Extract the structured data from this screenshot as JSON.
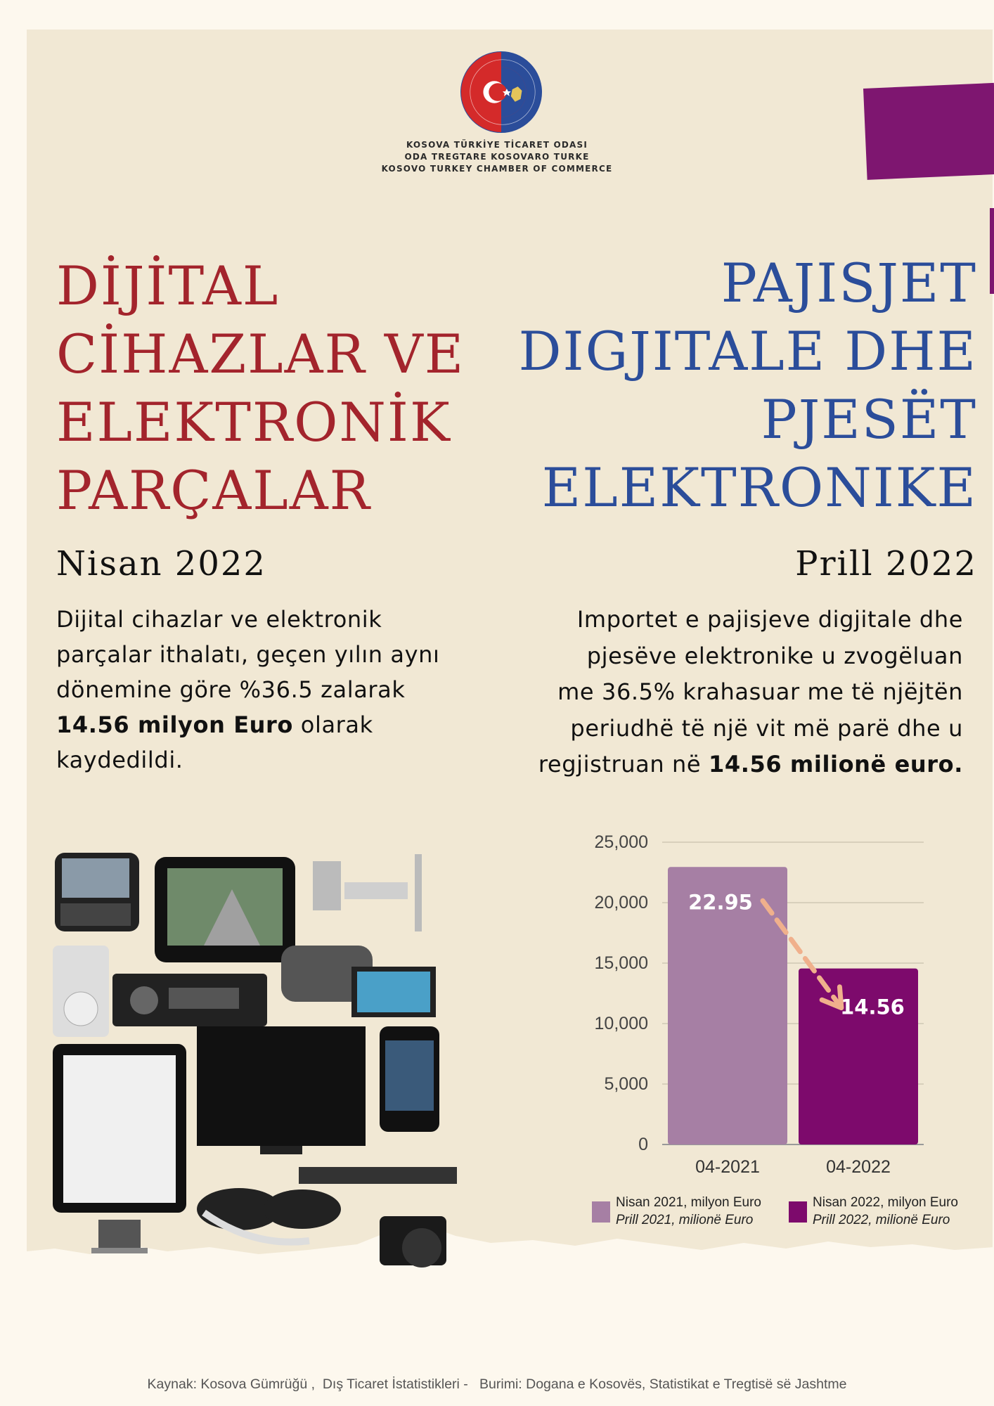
{
  "organization": {
    "line1": "KOSOVA TÜRKİYE TİCARET ODASI",
    "line2": "ODA TREGTARE KOSOVARO TURKE",
    "line3": "KOSOVO TURKEY CHAMBER OF COMMERCE",
    "logo_ring_text": "ODA TREGTARE KOSOVARO TURKE • KOSOVA TÜRKİYE TİCARET ODASI •"
  },
  "turkish": {
    "title_lines": [
      "DİJİTAL",
      "CİHAZLAR VE",
      "ELEKTRONİK",
      "PARÇALAR"
    ],
    "date": "Nisan 2022",
    "desc_lines": [
      "Dijital cihazlar ve elektronik",
      "parçalar ithalatı, geçen yılın aynı",
      "dönemine göre %36.5 zalarak"
    ],
    "desc_bold": "14.56 milyon Euro",
    "desc_after": " olarak",
    "desc_last": "kaydedildi."
  },
  "albanian": {
    "title_lines": [
      "PAJISJET",
      "DIGJITALE DHE",
      "PJESËT",
      "ELEKTRONIKE"
    ],
    "date": "Prill 2022",
    "desc_lines": [
      "Importet e pajisjeve digjitale dhe",
      "pjesëve elektronike u zvogëluan",
      "me 36.5% krahasuar me të njëjtën",
      "periudhë të një vit më parë dhe u"
    ],
    "desc_before": "regjistruan në ",
    "desc_bold": "14.56 milionë euro."
  },
  "chart_data": {
    "type": "bar",
    "categories": [
      "04-2021",
      "04-2022"
    ],
    "values": [
      22950,
      14560
    ],
    "data_labels": [
      "22.95",
      "14.56"
    ],
    "yticks": [
      "25,000",
      "20,000",
      "15,000",
      "10,000",
      "5,000",
      "0"
    ],
    "ylim": [
      0,
      25000
    ],
    "grid": true,
    "colors": [
      "#a67fa4",
      "#7d0a6c"
    ],
    "legend": [
      {
        "line1": "Nisan 2021, milyon Euro",
        "line2": "Prill 2021, milionë Euro"
      },
      {
        "line1": "Nisan 2022, milyon Euro",
        "line2": "Prill 2022, milionë Euro"
      }
    ],
    "legend_position": "bottom",
    "trend_arrow": "decrease",
    "arrow_color": "#f0b08c"
  },
  "source": "Kaynak: Kosova Gümrüğü ,  Dış Ticaret İstatistikleri -   Burimi: Dogana e Kosovës, Statistikat e Tregtisë së Jashtme",
  "colors": {
    "background": "#f1e8d4",
    "turkish_title": "#a3242c",
    "albanian_title": "#2b4d9a",
    "accent_purple": "#7e1670"
  }
}
